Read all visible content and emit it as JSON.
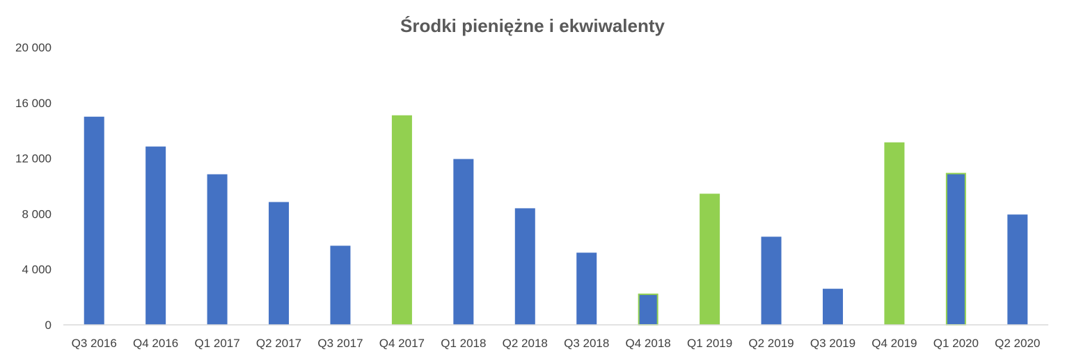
{
  "chart_data": {
    "type": "bar",
    "title": "Środki pieniężne i ekwiwalenty",
    "xlabel": "",
    "ylabel": "",
    "ylim": [
      0,
      20000
    ],
    "y_ticks": [
      0,
      4000,
      8000,
      12000,
      16000,
      20000
    ],
    "y_tick_labels": [
      "0",
      "4 000",
      "8 000",
      "12 000",
      "16 000",
      "20 000"
    ],
    "grid": false,
    "legend": "none",
    "categories": [
      "Q3 2016",
      "Q4 2016",
      "Q1 2017",
      "Q2 2017",
      "Q3 2017",
      "Q4 2017",
      "Q1 2018",
      "Q2 2018",
      "Q3 2018",
      "Q4 2018",
      "Q1 2019",
      "Q2 2019",
      "Q3 2019",
      "Q4 2019",
      "Q1 2020",
      "Q2 2020"
    ],
    "values": [
      15000,
      12850,
      10850,
      8850,
      5700,
      15100,
      11950,
      8400,
      5200,
      2250,
      9450,
      6350,
      2600,
      13150,
      10950,
      7950
    ],
    "bar_fill": [
      "blue",
      "blue",
      "blue",
      "blue",
      "blue",
      "green",
      "blue",
      "blue",
      "blue",
      "blue",
      "green",
      "blue",
      "blue",
      "green",
      "blue",
      "blue"
    ],
    "bar_outline": [
      "none",
      "none",
      "none",
      "none",
      "none",
      "none",
      "none",
      "none",
      "none",
      "green",
      "none",
      "none",
      "none",
      "none",
      "green",
      "none"
    ],
    "colors": {
      "blue": "#4472C4",
      "green": "#92D050",
      "axis": "#D9D9D9"
    }
  }
}
